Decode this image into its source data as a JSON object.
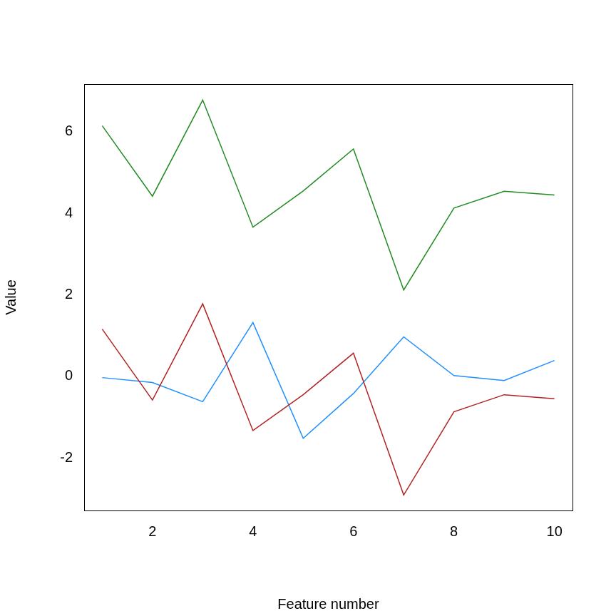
{
  "chart_data": {
    "type": "line",
    "x_label": "Feature number",
    "y_label": "Value",
    "x": [
      1,
      2,
      3,
      4,
      5,
      6,
      7,
      8,
      9,
      10
    ],
    "series": [
      {
        "color": "#228B22",
        "values": [
          6.15,
          4.42,
          6.78,
          3.66,
          4.55,
          5.58,
          2.12,
          4.13,
          4.54,
          4.45
        ]
      },
      {
        "color": "#B22222",
        "values": [
          1.16,
          -0.58,
          1.78,
          -1.33,
          -0.45,
          0.57,
          -2.91,
          -0.87,
          -0.45,
          -0.55
        ]
      },
      {
        "color": "#1E90FF",
        "values": [
          -0.03,
          -0.15,
          -0.62,
          1.32,
          -1.52,
          -0.42,
          0.97,
          0.02,
          -0.1,
          0.39
        ]
      }
    ],
    "xlim": [
      0.64,
      10.36
    ],
    "ylim": [
      -3.29,
      7.17
    ],
    "xticks": [
      2,
      4,
      6,
      8,
      10
    ],
    "yticks": [
      -2,
      0,
      2,
      4,
      6
    ],
    "grid": false
  }
}
